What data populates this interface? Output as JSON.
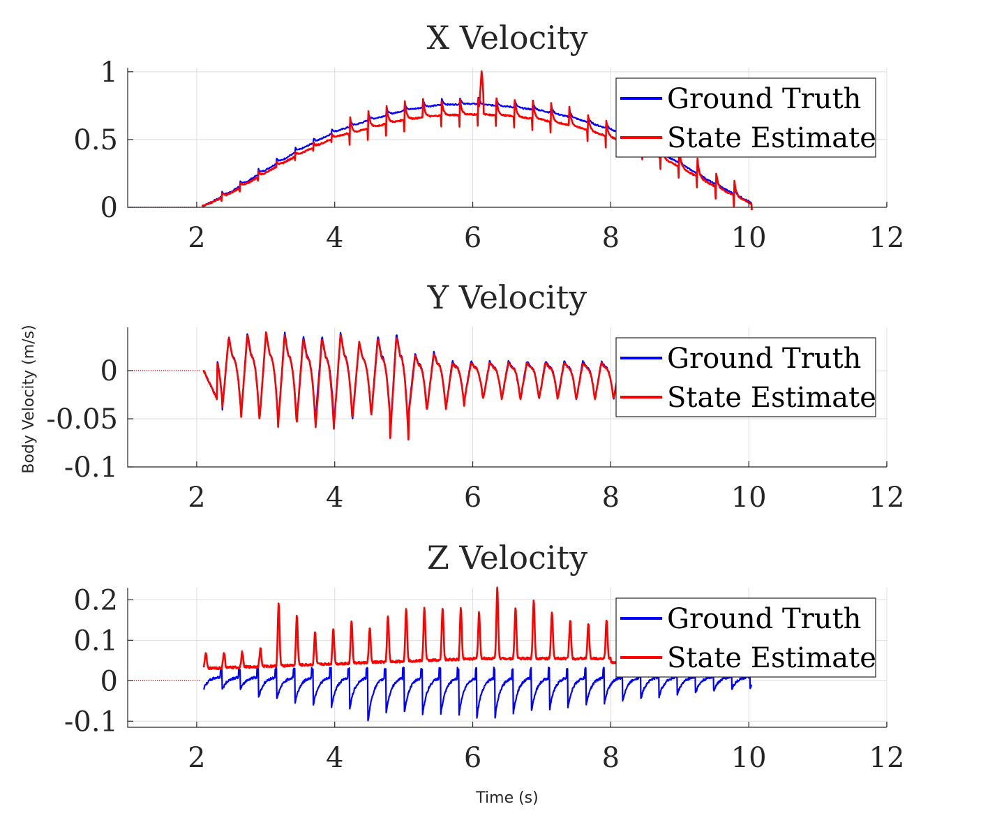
{
  "figure": {
    "ylabel": "Body Velocity (m/s)",
    "xlabel": "Time (s)"
  },
  "chart_data": [
    {
      "type": "line",
      "title": "X Velocity",
      "xlim": [
        1,
        12
      ],
      "ylim": [
        0,
        1.03
      ],
      "xticks": [
        2,
        4,
        6,
        8,
        10,
        12
      ],
      "yticks": [
        0,
        0.5,
        1
      ],
      "ytick_labels": [
        "0",
        "0.5",
        "1"
      ],
      "grid": true,
      "legend_location": "top-right",
      "series": [
        {
          "name": "Ground Truth",
          "color": "#0000ff",
          "x": [
            1.0,
            2.0,
            2.1,
            2.5,
            3.0,
            3.5,
            4.0,
            4.5,
            5.0,
            5.5,
            6.0,
            6.5,
            7.0,
            7.5,
            8.0,
            8.5,
            9.0,
            9.5,
            10.0,
            10.05
          ],
          "y": [
            0.0,
            0.0,
            0.01,
            0.12,
            0.28,
            0.43,
            0.56,
            0.65,
            0.72,
            0.76,
            0.77,
            0.75,
            0.72,
            0.66,
            0.58,
            0.47,
            0.33,
            0.18,
            0.05,
            0.03
          ],
          "spike_amp": 0.06,
          "spikes_from": 4.2
        },
        {
          "name": "State Estimate",
          "color": "#ff0000",
          "x": [
            1.0,
            2.0,
            2.1,
            2.5,
            3.0,
            3.5,
            4.0,
            4.5,
            5.0,
            5.5,
            6.0,
            6.5,
            7.0,
            7.5,
            8.0,
            8.5,
            9.0,
            9.5,
            10.0,
            10.05
          ],
          "y": [
            0.0,
            0.0,
            0.01,
            0.11,
            0.26,
            0.4,
            0.52,
            0.6,
            0.66,
            0.69,
            0.7,
            0.69,
            0.66,
            0.61,
            0.53,
            0.44,
            0.31,
            0.17,
            0.05,
            0.03
          ],
          "spike_amp": 0.14,
          "big_spike": {
            "x": 6.13,
            "y": 1.02
          },
          "spikes_from": 4.2
        }
      ]
    },
    {
      "type": "line",
      "title": "Y Velocity",
      "xlim": [
        1,
        12
      ],
      "ylim": [
        -0.1,
        0.045
      ],
      "xticks": [
        2,
        4,
        6,
        8,
        10,
        12
      ],
      "yticks": [
        -0.1,
        -0.05,
        0
      ],
      "ytick_labels": [
        "-0.1",
        "-0.05",
        "0"
      ],
      "grid": true,
      "legend_location": "top-right",
      "series": [
        {
          "name": "Ground Truth",
          "color": "#0000ff",
          "peaks": [
            0.04,
            0.036,
            0.04,
            0.04,
            0.04,
            0.037,
            0.036,
            0.04,
            0.03,
            0.037,
            0.04,
            0.018,
            0.02,
            0.01,
            0.01
          ],
          "troughs": [
            -0.03,
            -0.042,
            -0.05,
            -0.052,
            -0.055,
            -0.052,
            -0.052,
            -0.058,
            -0.05,
            -0.046,
            -0.07,
            -0.044,
            -0.04,
            -0.04,
            -0.03
          ]
        },
        {
          "name": "State Estimate",
          "color": "#ff0000",
          "peaks": [
            0.037,
            0.035,
            0.038,
            0.04,
            0.038,
            0.034,
            0.034,
            0.038,
            0.03,
            0.034,
            0.037,
            0.015,
            0.018,
            0.008,
            0.008
          ],
          "troughs": [
            -0.031,
            -0.04,
            -0.051,
            -0.053,
            -0.058,
            -0.054,
            -0.063,
            -0.057,
            -0.048,
            -0.048,
            -0.074,
            -0.047,
            -0.04,
            -0.04,
            -0.03
          ]
        }
      ]
    },
    {
      "type": "line",
      "title": "Z Velocity",
      "xlim": [
        1,
        12
      ],
      "ylim": [
        -0.115,
        0.23
      ],
      "xticks": [
        2,
        4,
        6,
        8,
        10,
        12
      ],
      "yticks": [
        -0.1,
        0,
        0.1,
        0.2
      ],
      "ytick_labels": [
        "-0.1",
        "0",
        "0.1",
        "0.2"
      ],
      "grid": true,
      "legend_location": "top-right",
      "series": [
        {
          "name": "Ground Truth",
          "color": "#0000ff",
          "base": 0.01,
          "troughs": [
            -0.02,
            -0.025,
            -0.025,
            -0.045,
            -0.05,
            -0.06,
            -0.065,
            -0.07,
            -0.075,
            -0.11,
            -0.085,
            -0.085,
            -0.09,
            -0.09,
            -0.09,
            -0.09,
            -0.09,
            -0.08,
            -0.075,
            -0.07,
            -0.065,
            -0.06,
            -0.055,
            -0.05,
            -0.045,
            -0.04,
            -0.035,
            -0.03,
            -0.025,
            -0.02,
            -0.02
          ]
        },
        {
          "name": "State Estimate",
          "color": "#ff0000",
          "base": [
            0.03,
            0.055
          ],
          "peaks": [
            0.07,
            0.07,
            0.07,
            0.08,
            0.19,
            0.16,
            0.12,
            0.13,
            0.15,
            0.13,
            0.16,
            0.18,
            0.18,
            0.18,
            0.18,
            0.17,
            0.23,
            0.18,
            0.2,
            0.17,
            0.15,
            0.14,
            0.15,
            0.15,
            0.12
          ]
        }
      ]
    }
  ]
}
